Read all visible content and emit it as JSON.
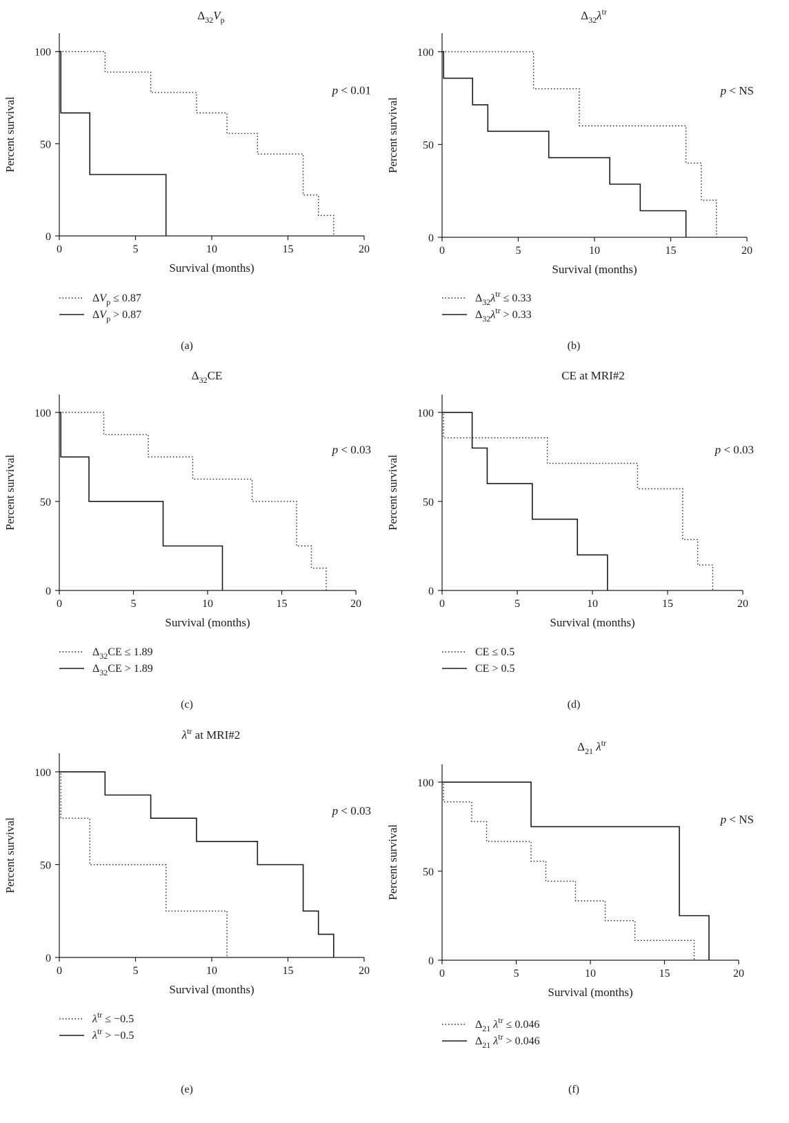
{
  "chart_data": [
    {
      "type": "line",
      "panel_label": "(a)",
      "title": {
        "base": "Δ",
        "sub": "32",
        "main": "V",
        "main_italic": true,
        "sub2": "p"
      },
      "xlabel": "Survival (months)",
      "ylabel": "Percent survival",
      "xlim": [
        0,
        20
      ],
      "ylim": [
        0,
        110
      ],
      "xticks": [
        0,
        5,
        10,
        15,
        20
      ],
      "yticks": [
        0,
        50,
        100
      ],
      "grid": false,
      "p_value": "p < 0.01",
      "series": [
        {
          "name": "ΔV_p ≤ 0.87",
          "style": "dotted",
          "legend": [
            {
              "t": "Δ"
            },
            {
              "t": "V",
              "i": true
            },
            {
              "t": "p",
              "sub": true
            },
            {
              "t": " ≤ 0.87"
            }
          ],
          "x": [
            0,
            3,
            3,
            6,
            6,
            9,
            9,
            11,
            11,
            13,
            13,
            16,
            16,
            17,
            17,
            18,
            18
          ],
          "y": [
            100,
            100,
            88.9,
            88.9,
            77.8,
            77.8,
            66.7,
            66.7,
            55.6,
            55.6,
            44.4,
            44.4,
            22.2,
            22.2,
            11.1,
            11.1,
            0
          ]
        },
        {
          "name": "ΔV_p > 0.87",
          "style": "solid",
          "legend": [
            {
              "t": "Δ"
            },
            {
              "t": "V",
              "i": true
            },
            {
              "t": "p",
              "sub": true
            },
            {
              "t": " > 0.87"
            }
          ],
          "x": [
            0,
            0.1,
            0.1,
            2,
            2,
            7,
            7
          ],
          "y": [
            100,
            100,
            66.7,
            66.7,
            33.3,
            33.3,
            0
          ]
        }
      ]
    },
    {
      "type": "line",
      "panel_label": "(b)",
      "title": {
        "base": "Δ",
        "sub": "32",
        "main": "λ",
        "main_italic": true,
        "sup": "tr"
      },
      "xlabel": "Survival (months)",
      "ylabel": "Percent survival",
      "xlim": [
        0,
        20
      ],
      "ylim": [
        0,
        110
      ],
      "xticks": [
        0,
        5,
        10,
        15,
        20
      ],
      "yticks": [
        0,
        50,
        100
      ],
      "grid": false,
      "p_value": "p < NS",
      "series": [
        {
          "name": "Δ32λtr ≤ 0.33",
          "style": "dotted",
          "legend": [
            {
              "t": "Δ"
            },
            {
              "t": "32",
              "sub": true
            },
            {
              "t": "λ",
              "i": true
            },
            {
              "t": "tr",
              "sup": true
            },
            {
              "t": " ≤ 0.33"
            }
          ],
          "x": [
            0,
            6,
            6,
            9,
            9,
            16,
            16,
            17,
            17,
            18,
            18
          ],
          "y": [
            100,
            100,
            80,
            80,
            60,
            60,
            40,
            40,
            20,
            20,
            0
          ]
        },
        {
          "name": "Δ32λtr > 0.33",
          "style": "solid",
          "legend": [
            {
              "t": "Δ"
            },
            {
              "t": "32",
              "sub": true
            },
            {
              "t": "λ",
              "i": true
            },
            {
              "t": "tr",
              "sup": true
            },
            {
              "t": " > 0.33"
            }
          ],
          "x": [
            0,
            0.1,
            0.1,
            2,
            2,
            3,
            3,
            7,
            7,
            11,
            11,
            13,
            13,
            16,
            16
          ],
          "y": [
            100,
            100,
            85.7,
            85.7,
            71.4,
            71.4,
            57.1,
            57.1,
            42.9,
            42.9,
            28.6,
            28.6,
            14.3,
            14.3,
            0
          ]
        }
      ]
    },
    {
      "type": "line",
      "panel_label": "(c)",
      "title": {
        "base": "Δ",
        "sub": "32",
        "main": "CE"
      },
      "xlabel": "Survival (months)",
      "ylabel": "Percent survival",
      "xlim": [
        0,
        20
      ],
      "ylim": [
        0,
        110
      ],
      "xticks": [
        0,
        5,
        10,
        15,
        20
      ],
      "yticks": [
        0,
        50,
        100
      ],
      "grid": false,
      "p_value": "p < 0.03",
      "series": [
        {
          "name": "Δ32CE ≤ 1.89",
          "style": "dotted",
          "legend": [
            {
              "t": "Δ"
            },
            {
              "t": "32",
              "sub": true
            },
            {
              "t": "CE ≤ 1.89"
            }
          ],
          "x": [
            0,
            3,
            3,
            6,
            6,
            9,
            9,
            13,
            13,
            16,
            16,
            17,
            17,
            18,
            18
          ],
          "y": [
            100,
            100,
            87.5,
            87.5,
            75,
            75,
            62.5,
            62.5,
            50,
            50,
            25,
            25,
            12.5,
            12.5,
            0
          ]
        },
        {
          "name": "Δ32CE > 1.89",
          "style": "solid",
          "legend": [
            {
              "t": "Δ"
            },
            {
              "t": "32",
              "sub": true
            },
            {
              "t": "CE > 1.89"
            }
          ],
          "x": [
            0,
            0.1,
            0.1,
            2,
            2,
            7,
            7,
            11,
            11
          ],
          "y": [
            100,
            100,
            75,
            75,
            50,
            50,
            25,
            25,
            0
          ]
        }
      ]
    },
    {
      "type": "line",
      "panel_label": "(d)",
      "title": {
        "main": "CE at MRI#2"
      },
      "xlabel": "Survival (months)",
      "ylabel": "Percent survival",
      "xlim": [
        0,
        20
      ],
      "ylim": [
        0,
        110
      ],
      "xticks": [
        0,
        5,
        10,
        15,
        20
      ],
      "yticks": [
        0,
        50,
        100
      ],
      "grid": false,
      "p_value": "p < 0.03",
      "series": [
        {
          "name": "CE ≤ 0.5",
          "style": "dotted",
          "legend": [
            {
              "t": "CE ≤ 0.5"
            }
          ],
          "x": [
            0,
            0.1,
            0.1,
            7,
            7,
            13,
            13,
            16,
            16,
            17,
            17,
            18,
            18
          ],
          "y": [
            100,
            100,
            85.7,
            85.7,
            71.4,
            71.4,
            57.1,
            57.1,
            28.6,
            28.6,
            14.3,
            14.3,
            0
          ]
        },
        {
          "name": "CE > 0.5",
          "style": "solid",
          "legend": [
            {
              "t": "CE > 0.5"
            }
          ],
          "x": [
            0,
            2,
            2,
            3,
            3,
            6,
            6,
            9,
            9,
            11,
            11
          ],
          "y": [
            100,
            100,
            80,
            80,
            60,
            60,
            40,
            40,
            20,
            20,
            0
          ]
        }
      ]
    },
    {
      "type": "line",
      "panel_label": "(e)",
      "title": {
        "main": "λ",
        "main_italic": true,
        "sup": "tr",
        "tail": " at MRI#2"
      },
      "xlabel": "Survival (months)",
      "ylabel": "Percent survival",
      "xlim": [
        0,
        20
      ],
      "ylim": [
        0,
        110
      ],
      "xticks": [
        0,
        5,
        10,
        15,
        20
      ],
      "yticks": [
        0,
        50,
        100
      ],
      "grid": false,
      "p_value": "p < 0.03",
      "series": [
        {
          "name": "λtr ≤ −0.5",
          "style": "dotted",
          "legend": [
            {
              "t": "λ",
              "i": true
            },
            {
              "t": "tr",
              "sup": true
            },
            {
              "t": " ≤ −0.5"
            }
          ],
          "x": [
            0,
            0.1,
            0.1,
            2,
            2,
            7,
            7,
            11,
            11
          ],
          "y": [
            100,
            100,
            75,
            75,
            50,
            50,
            25,
            25,
            0
          ]
        },
        {
          "name": "λtr > −0.5",
          "style": "solid",
          "legend": [
            {
              "t": "λ",
              "i": true
            },
            {
              "t": "tr",
              "sup": true
            },
            {
              "t": " > −0.5"
            }
          ],
          "x": [
            0,
            3,
            3,
            6,
            6,
            9,
            9,
            13,
            13,
            16,
            16,
            17,
            17,
            18,
            18
          ],
          "y": [
            100,
            100,
            87.5,
            87.5,
            75,
            75,
            62.5,
            62.5,
            50,
            50,
            25,
            25,
            12.5,
            12.5,
            0
          ]
        }
      ]
    },
    {
      "type": "line",
      "panel_label": "(f)",
      "title": {
        "base": "Δ",
        "sub": "21",
        "main": " λ",
        "main_italic": true,
        "sup": "tr"
      },
      "xlabel": "Survival (months)",
      "ylabel": "Percent survival",
      "xlim": [
        0,
        20
      ],
      "ylim": [
        0,
        110
      ],
      "xticks": [
        0,
        5,
        10,
        15,
        20
      ],
      "yticks": [
        0,
        50,
        100
      ],
      "grid": false,
      "p_value": "p < NS",
      "series": [
        {
          "name": "Δ21 λtr ≤ 0.046",
          "style": "dotted",
          "legend": [
            {
              "t": "Δ"
            },
            {
              "t": "21",
              "sub": true
            },
            {
              "t": " λ",
              "i": true
            },
            {
              "t": "tr",
              "sup": true
            },
            {
              "t": " ≤ 0.046"
            }
          ],
          "x": [
            0,
            0.1,
            0.1,
            2,
            2,
            3,
            3,
            6,
            6,
            7,
            7,
            9,
            9,
            11,
            11,
            13,
            13,
            17,
            17
          ],
          "y": [
            100,
            100,
            88.9,
            88.9,
            77.8,
            77.8,
            66.7,
            66.7,
            55.6,
            55.6,
            44.4,
            44.4,
            33.3,
            33.3,
            22.2,
            22.2,
            11.1,
            11.1,
            0
          ]
        },
        {
          "name": "Δ21 λtr > 0.046",
          "style": "solid",
          "legend": [
            {
              "t": "Δ"
            },
            {
              "t": "21",
              "sub": true
            },
            {
              "t": " λ",
              "i": true
            },
            {
              "t": "tr",
              "sup": true
            },
            {
              "t": " > 0.046"
            }
          ],
          "x": [
            0,
            6,
            6,
            16,
            16,
            18,
            18
          ],
          "y": [
            100,
            100,
            75,
            75,
            25,
            25,
            0
          ]
        }
      ]
    }
  ]
}
